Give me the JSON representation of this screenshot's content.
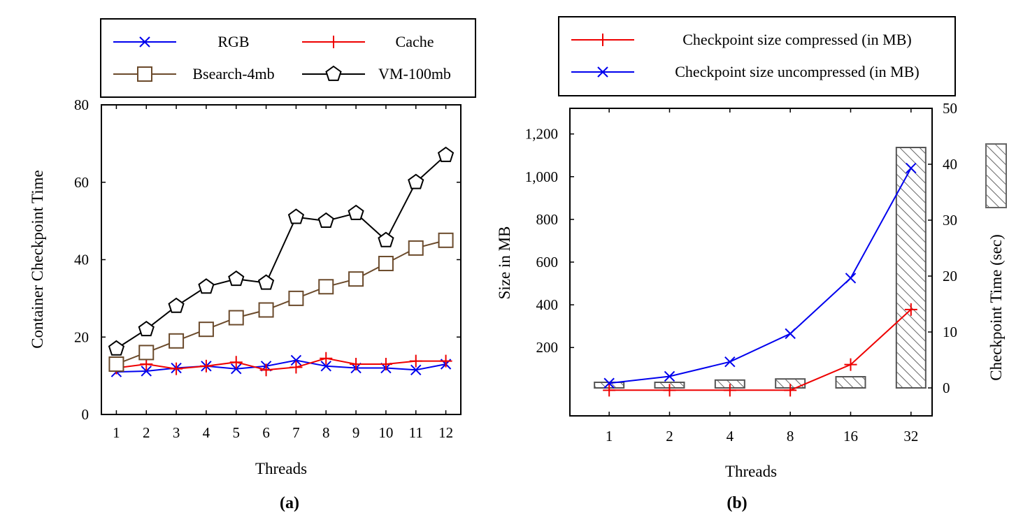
{
  "chart_data": [
    {
      "type": "line",
      "caption": "(a)",
      "title": "",
      "xlabel": "Threads",
      "ylabel": "Container Checkpoint Time",
      "x": [
        1,
        2,
        3,
        4,
        5,
        6,
        7,
        8,
        9,
        10,
        11,
        12
      ],
      "xticks": [
        "1",
        "2",
        "3",
        "4",
        "5",
        "6",
        "7",
        "8",
        "9",
        "10",
        "11",
        "12"
      ],
      "xlim": [
        0.5,
        12.5
      ],
      "ylim": [
        0,
        80
      ],
      "yticks": [
        0,
        20,
        40,
        60,
        80
      ],
      "ytick_labels": [
        "0",
        "20",
        "40",
        "60",
        "80"
      ],
      "legend_position": "top (outside)",
      "series": [
        {
          "name": "RGB",
          "color": "#0000ee",
          "marker": "x",
          "values": [
            11,
            11.2,
            12,
            12.5,
            11.8,
            12.5,
            14,
            12.5,
            12,
            12,
            11.5,
            13
          ]
        },
        {
          "name": "Cache",
          "color": "#ee0000",
          "marker": "plus",
          "values": [
            12,
            13,
            11.8,
            12.5,
            13.5,
            11.5,
            12.2,
            14.5,
            13,
            13,
            13.8,
            13.8
          ]
        },
        {
          "name": "Bsearch-4mb",
          "color": "#6b4a2b",
          "marker": "square",
          "values": [
            13,
            16,
            19,
            22,
            25,
            27,
            30,
            33,
            35,
            39,
            43,
            45
          ]
        },
        {
          "name": "VM-100mb",
          "color": "#000000",
          "marker": "pentagon",
          "values": [
            17,
            22,
            28,
            33,
            35,
            34,
            51,
            50,
            52,
            45,
            60,
            67
          ]
        }
      ]
    },
    {
      "type": "bar+line",
      "caption": "(b)",
      "title": "",
      "xlabel": "Threads",
      "ylabel": "Size in MB",
      "y2label": "Checkpoint Time (sec)",
      "categories": [
        "1",
        "2",
        "4",
        "8",
        "16",
        "32"
      ],
      "ylim": [
        -120,
        1320
      ],
      "yticks": [
        200,
        400,
        600,
        800,
        1000,
        1200
      ],
      "ytick_labels": [
        "200",
        "400",
        "600",
        "800",
        "1,000",
        "1,200"
      ],
      "y2lim": [
        -5,
        50
      ],
      "y2ticks": [
        0,
        10,
        20,
        30,
        40,
        50
      ],
      "y2tick_labels": [
        "0",
        "10",
        "20",
        "30",
        "40",
        "50"
      ],
      "legend_position": "top (outside)",
      "series": [
        {
          "name": "Checkpoint size compressed (in MB)",
          "color": "#ee0000",
          "marker": "plus",
          "values": [
            0,
            0,
            0,
            0,
            120,
            378
          ]
        },
        {
          "name": "Checkpoint size uncompressed (in MB)",
          "color": "#0000ee",
          "marker": "x",
          "values": [
            33,
            65,
            133,
            265,
            525,
            1040
          ]
        }
      ],
      "bars": {
        "name": "Checkpoint Time (sec)",
        "pattern": "hatched",
        "values": [
          1,
          1,
          1.4,
          1.6,
          2,
          43
        ]
      }
    }
  ]
}
